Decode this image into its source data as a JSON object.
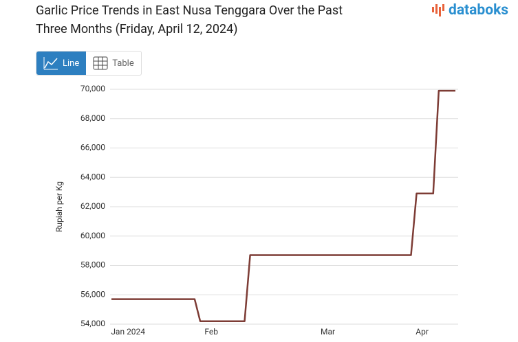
{
  "brand": "databoks",
  "toggle": {
    "line": "Line",
    "table": "Table"
  },
  "chart_data": {
    "type": "line",
    "title": "Garlic Price Trends in East Nusa Tenggara Over the Past Three Months (Friday, April 12, 2024)",
    "y_label": "Rupiah per Kg",
    "categories": [
      null,
      null,
      null,
      "Jan 2024",
      null,
      null,
      null,
      null,
      null,
      null,
      null,
      null,
      null,
      null,
      null,
      null,
      null,
      null,
      "Feb",
      null,
      null,
      null,
      null,
      null,
      null,
      null,
      null,
      null,
      null,
      null,
      null,
      null,
      null,
      null,
      null,
      null,
      null,
      null,
      null,
      "Mar",
      null,
      null,
      null,
      null,
      null,
      null,
      null,
      null,
      null,
      null,
      null,
      null,
      null,
      null,
      null,
      null,
      "Apr",
      null,
      null,
      null,
      null,
      null,
      null
    ],
    "values": [
      55700,
      55700,
      55700,
      55700,
      55700,
      55700,
      55700,
      55700,
      55700,
      55700,
      55700,
      55700,
      55700,
      55700,
      55700,
      55700,
      54200,
      54200,
      54200,
      54200,
      54200,
      54200,
      54200,
      54200,
      54200,
      58700,
      58700,
      58700,
      58700,
      58700,
      58700,
      58700,
      58700,
      58700,
      58700,
      58700,
      58700,
      58700,
      58700,
      58700,
      58700,
      58700,
      58700,
      58700,
      58700,
      58700,
      58700,
      58700,
      58700,
      58700,
      58700,
      58700,
      58700,
      58700,
      58700,
      62900,
      62900,
      62900,
      62900,
      69900,
      69900,
      69900,
      69900
    ],
    "color": "#7d3c35",
    "ylim": [
      54000,
      70000
    ],
    "yticks": [
      {
        "value": 54000,
        "label": "54,000"
      },
      {
        "value": 56000,
        "label": "56,000"
      },
      {
        "value": 58000,
        "label": "58,000"
      },
      {
        "value": 60000,
        "label": "60,000"
      },
      {
        "value": 62000,
        "label": "62,000"
      },
      {
        "value": 64000,
        "label": "64,000"
      },
      {
        "value": 66000,
        "label": "66,000"
      },
      {
        "value": 68000,
        "label": "68,000"
      },
      {
        "value": 70000,
        "label": "70,000"
      }
    ],
    "grid": true
  }
}
